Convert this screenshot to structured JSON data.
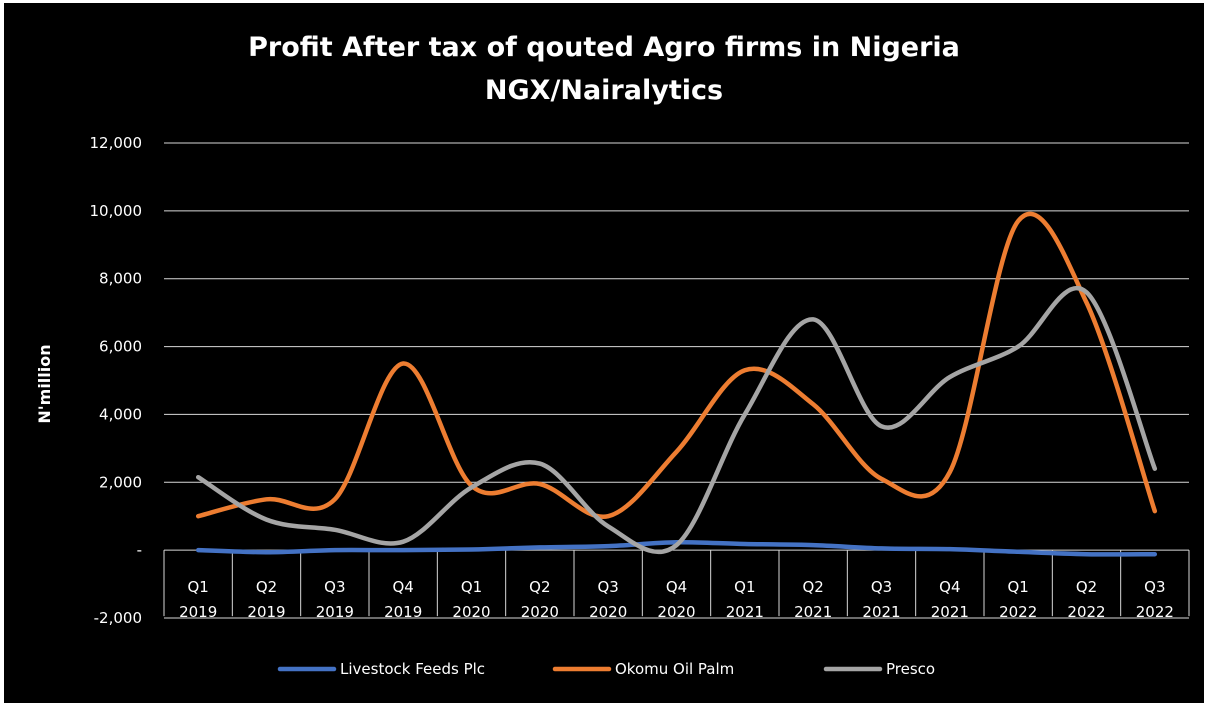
{
  "chart_data": {
    "type": "line",
    "title": "Profit After tax of qouted Agro firms in Nigeria",
    "subtitle": "NGX/Nairalytics",
    "ylabel": "N'million",
    "xlabel": "",
    "ylim": [
      -2000,
      12000
    ],
    "yticks": [
      {
        "value": 12000,
        "label": "12,000"
      },
      {
        "value": 10000,
        "label": "10,000"
      },
      {
        "value": 8000,
        "label": "8,000"
      },
      {
        "value": 6000,
        "label": "6,000"
      },
      {
        "value": 4000,
        "label": "4,000"
      },
      {
        "value": 2000,
        "label": "2,000"
      },
      {
        "value": 0,
        "label": "-"
      },
      {
        "value": -2000,
        "label": "-2,000"
      }
    ],
    "categories": [
      [
        "Q1",
        "2019"
      ],
      [
        "Q2",
        "2019"
      ],
      [
        "Q3",
        "2019"
      ],
      [
        "Q4",
        "2019"
      ],
      [
        "Q1",
        "2020"
      ],
      [
        "Q2",
        "2020"
      ],
      [
        "Q3",
        "2020"
      ],
      [
        "Q4",
        "2020"
      ],
      [
        "Q1",
        "2021"
      ],
      [
        "Q2",
        "2021"
      ],
      [
        "Q3",
        "2021"
      ],
      [
        "Q4",
        "2021"
      ],
      [
        "Q1",
        "2022"
      ],
      [
        "Q2",
        "2022"
      ],
      [
        "Q3",
        "2022"
      ]
    ],
    "grid": true,
    "legend_position": "bottom",
    "series": [
      {
        "name": "Livestock Feeds Plc",
        "color": "#4472c4",
        "values": [
          0,
          -60,
          0,
          0,
          20,
          80,
          120,
          230,
          180,
          150,
          50,
          30,
          -50,
          -120,
          -120
        ]
      },
      {
        "name": "Okomu Oil Palm",
        "color": "#ed7d31",
        "values": [
          1000,
          1500,
          1500,
          5500,
          1900,
          1950,
          1000,
          2900,
          5300,
          4300,
          2100,
          2300,
          9700,
          7300,
          1150
        ]
      },
      {
        "name": "Presco",
        "color": "#a5a5a5",
        "values": [
          2150,
          900,
          600,
          250,
          1850,
          2550,
          700,
          150,
          4000,
          6800,
          3650,
          5100,
          6000,
          7600,
          2400
        ]
      }
    ]
  }
}
